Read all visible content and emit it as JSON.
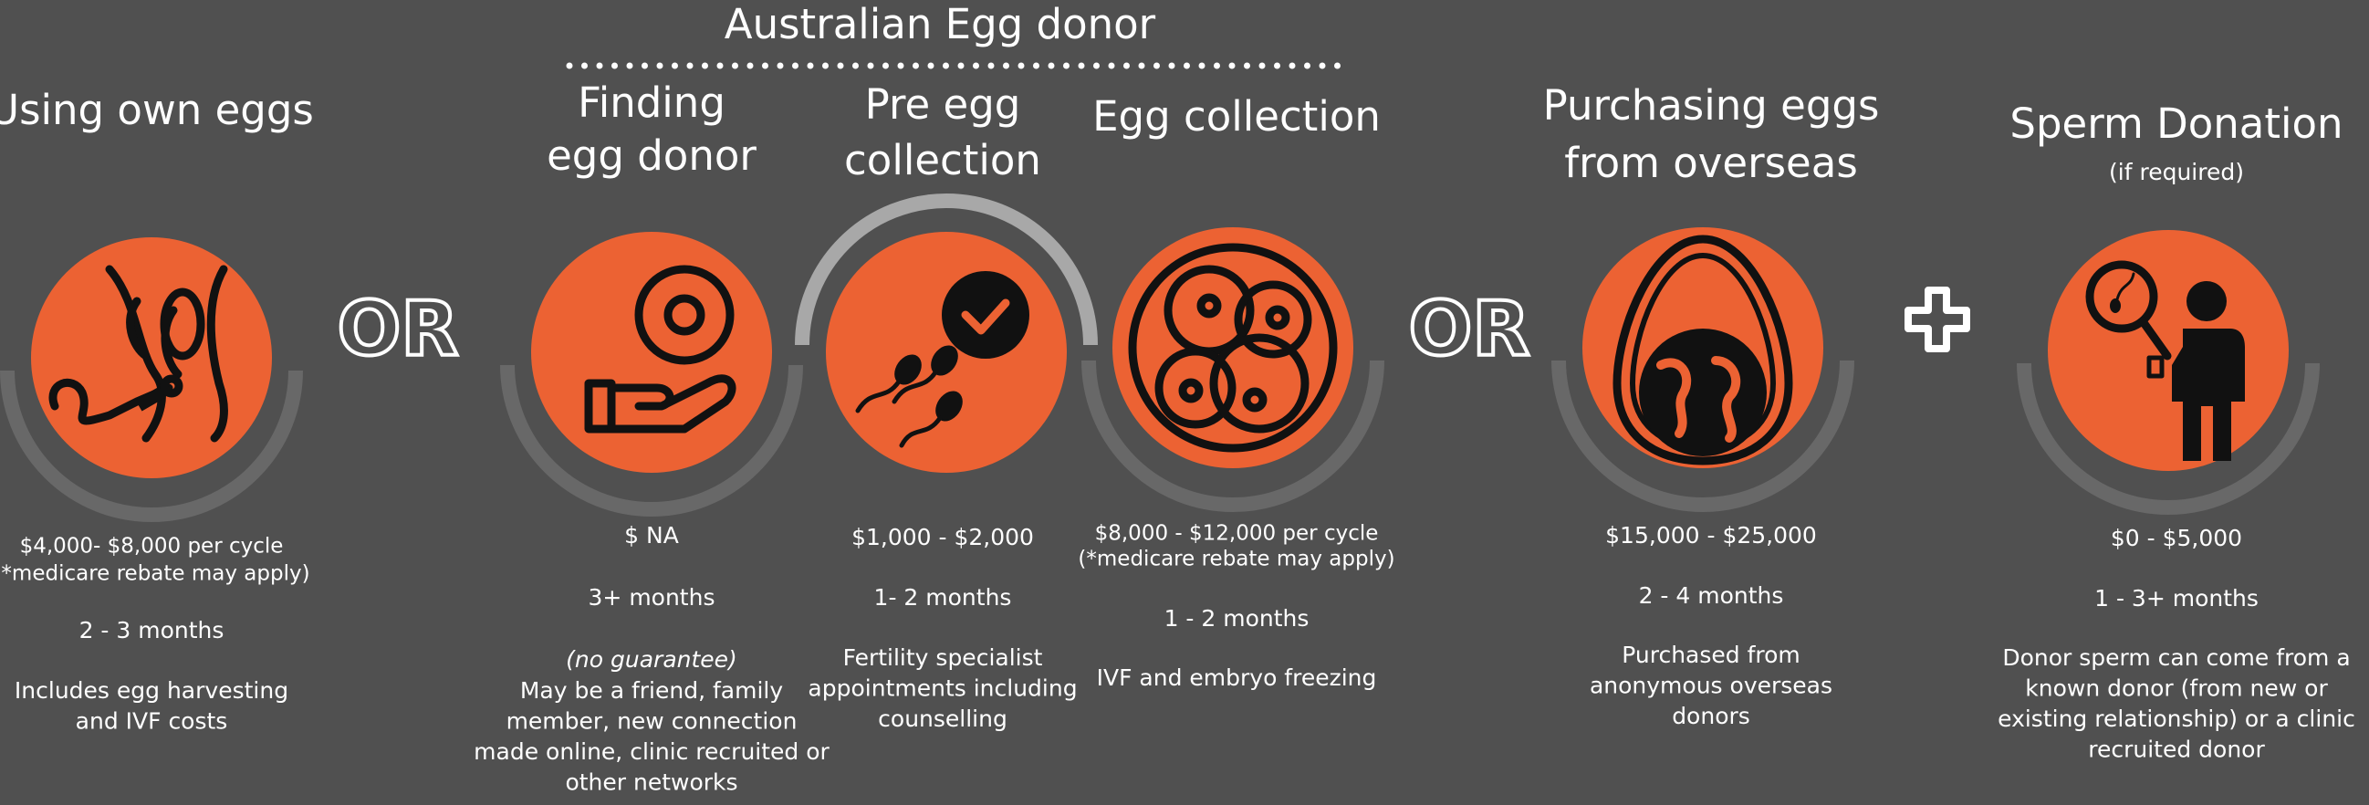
{
  "header": {
    "title": "Australian Egg donor"
  },
  "columns": [
    {
      "title": [
        "Using own eggs"
      ],
      "cost": [
        "$4,000- $8,000 per cycle",
        "(*medicare rebate may apply)"
      ],
      "duration": "2 - 3 months",
      "details": [
        "Includes egg harvesting",
        "and IVF costs"
      ]
    },
    {
      "title": [
        "Finding",
        "egg donor"
      ],
      "cost": [
        "$ NA"
      ],
      "duration": "3+ months",
      "note": "(no guarantee)",
      "details": [
        "May be a friend, family",
        "member, new connection",
        "made online, clinic recruited or",
        "other networks"
      ]
    },
    {
      "title": [
        "Pre egg",
        "collection"
      ],
      "cost": [
        "$1,000 - $2,000"
      ],
      "duration": "1- 2 months",
      "details": [
        "Fertility specialist",
        "appointments including",
        "counselling"
      ]
    },
    {
      "title": [
        "Egg collection"
      ],
      "cost": [
        "$8,000 - $12,000 per cycle",
        "(*medicare rebate may apply)"
      ],
      "duration": "1 - 2 months",
      "details": [
        "IVF and embryo freezing"
      ]
    },
    {
      "title": [
        "Purchasing eggs",
        "from overseas"
      ],
      "cost": [
        "$15,000 - $25,000"
      ],
      "duration": "2 - 4 months",
      "details": [
        "Purchased from",
        "anonymous overseas",
        "donors"
      ]
    },
    {
      "title": [
        "Sperm Donation"
      ],
      "subtitle": "(if required)",
      "cost": [
        "$0 - $5,000"
      ],
      "duration": "1 - 3+ months",
      "details": [
        "Donor sperm can come from a",
        "known donor (from new or",
        "existing relationship) or a clinic",
        "recruited donor"
      ]
    }
  ],
  "separators": [
    "OR",
    "OR"
  ]
}
